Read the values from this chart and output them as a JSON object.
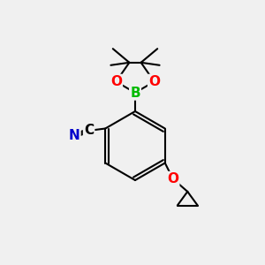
{
  "bg_color": "#f0f0f0",
  "bond_color": "#000000",
  "bond_width": 1.5,
  "atom_colors": {
    "B": "#00bb00",
    "O": "#ff0000",
    "N": "#0000cc",
    "C": "#000000"
  },
  "font_size_atoms": 11
}
